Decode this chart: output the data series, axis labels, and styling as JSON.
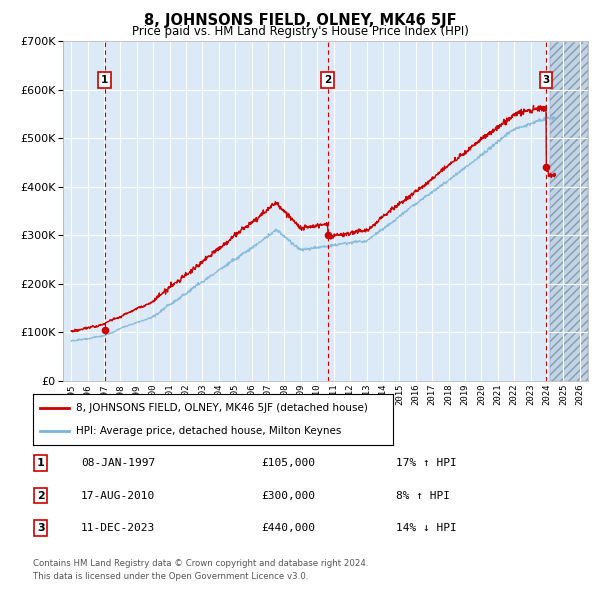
{
  "title": "8, JOHNSONS FIELD, OLNEY, MK46 5JF",
  "subtitle": "Price paid vs. HM Land Registry's House Price Index (HPI)",
  "legend_line1": "8, JOHNSONS FIELD, OLNEY, MK46 5JF (detached house)",
  "legend_line2": "HPI: Average price, detached house, Milton Keynes",
  "footer1": "Contains HM Land Registry data © Crown copyright and database right 2024.",
  "footer2": "This data is licensed under the Open Government Licence v3.0.",
  "sales": [
    {
      "num": 1,
      "date": "08-JAN-1997",
      "price": 105000,
      "hpi_rel": "17% ↑ HPI",
      "x": 1997.03
    },
    {
      "num": 2,
      "date": "17-AUG-2010",
      "price": 300000,
      "hpi_rel": "8% ↑ HPI",
      "x": 2010.63
    },
    {
      "num": 3,
      "date": "11-DEC-2023",
      "price": 440000,
      "hpi_rel": "14% ↓ HPI",
      "x": 2023.95
    }
  ],
  "ylim": [
    0,
    700000
  ],
  "xlim": [
    1994.5,
    2026.5
  ],
  "future_start": 2024.2,
  "background_color": "#ffffff",
  "plot_bg": "#dce9f7",
  "grid_color": "#ffffff",
  "red_line_color": "#cc0000",
  "blue_line_color": "#7ab3d8",
  "marker_color": "#cc0000",
  "sale_line_color": "#cc0000",
  "box_edge_color": "#cc0000",
  "hpi_base_1995": 78000,
  "hpi_at_1997": 89000,
  "hpi_at_2007_peak": 310000,
  "hpi_at_2009_trough": 270000,
  "hpi_at_2010": 280000,
  "hpi_at_2022_peak": 520000,
  "hpi_at_2024": 540000
}
